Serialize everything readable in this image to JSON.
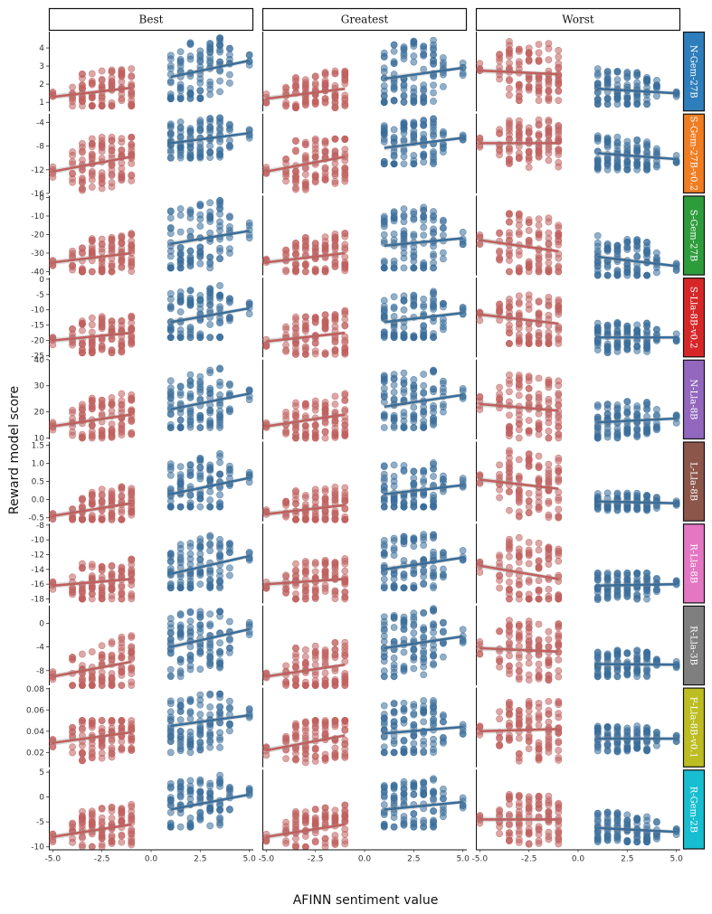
{
  "chart_data": {
    "type": "scatter",
    "xlabel": "AFINN sentiment value",
    "ylabel": "Reward model score",
    "x_ticks": [
      -5.0,
      -2.5,
      0.0,
      2.5,
      5.0
    ],
    "x_tick_labels": [
      "-5.0",
      "-2.5",
      "0.0",
      "2.5",
      "5.0"
    ],
    "xlim": [
      -5.2,
      5.2
    ],
    "columns": [
      "Best",
      "Greatest",
      "Worst"
    ],
    "colors": {
      "negative": "#c0605e",
      "positive": "#3a6e9a"
    },
    "neg_x": [
      -5,
      -4,
      -3.5,
      -3,
      -2.5,
      -2,
      -1.5,
      -1
    ],
    "pos_x": [
      1,
      1.5,
      2,
      2.5,
      3,
      3.5,
      4,
      5
    ],
    "rows": [
      {
        "name": "N-Gem-27B",
        "color": "#2f7ebc",
        "ylim": [
          0.5,
          4.9
        ],
        "ticks": [
          1,
          2,
          3,
          4
        ],
        "tick_labels": [
          "1",
          "2",
          "3",
          "4"
        ],
        "panels": [
          {
            "neg_fit": [
              1.3,
              1.8
            ],
            "pos_fit": [
              2.4,
              3.3
            ],
            "neg_range": [
              0.8,
              3.1
            ],
            "pos_range": [
              1.2,
              4.7
            ]
          },
          {
            "neg_fit": [
              1.2,
              1.75
            ],
            "pos_fit": [
              2.3,
              2.9
            ],
            "neg_range": [
              0.7,
              2.9
            ],
            "pos_range": [
              1.0,
              4.7
            ]
          },
          {
            "neg_fit": [
              2.75,
              2.55
            ],
            "pos_fit": [
              1.75,
              1.5
            ],
            "neg_range": [
              1.1,
              4.5
            ],
            "pos_range": [
              0.9,
              3.1
            ]
          }
        ]
      },
      {
        "name": "S-Gem-27B-v0.2",
        "color": "#f07d22",
        "ylim": [
          -16,
          -2.5
        ],
        "ticks": [
          -4,
          -8,
          -12,
          -16
        ],
        "tick_labels": [
          "-4",
          "-8",
          "-12",
          "-16"
        ],
        "panels": [
          {
            "neg_fit": [
              -12.3,
              -9.8
            ],
            "pos_fit": [
              -7.5,
              -5.8
            ],
            "neg_range": [
              -15.5,
              -6.5
            ],
            "pos_range": [
              -10,
              -3
            ]
          },
          {
            "neg_fit": [
              -12.3,
              -9.8
            ],
            "pos_fit": [
              -8.3,
              -6.6
            ],
            "neg_range": [
              -15.5,
              -6.8
            ],
            "pos_range": [
              -11,
              -3
            ]
          },
          {
            "neg_fit": [
              -7.5,
              -7.5
            ],
            "pos_fit": [
              -9.2,
              -10.2
            ],
            "neg_range": [
              -12,
              -3.5
            ],
            "pos_range": [
              -12,
              -6
            ]
          }
        ]
      },
      {
        "name": "S-Gem-27B",
        "color": "#2e9c3b",
        "ylim": [
          -42,
          1
        ],
        "ticks": [
          0,
          -10,
          -20,
          -30,
          -40
        ],
        "tick_labels": [
          "0",
          "-10",
          "-20",
          "-30",
          "-40"
        ],
        "panels": [
          {
            "neg_fit": [
              -35,
              -30
            ],
            "pos_fit": [
              -25,
              -18
            ],
            "neg_range": [
              -40,
              -18
            ],
            "pos_range": [
              -38,
              0
            ]
          },
          {
            "neg_fit": [
              -35,
              -30
            ],
            "pos_fit": [
              -26,
              -22
            ],
            "neg_range": [
              -40,
              -18
            ],
            "pos_range": [
              -38,
              0
            ]
          },
          {
            "neg_fit": [
              -23,
              -29
            ],
            "pos_fit": [
              -32,
              -37
            ],
            "neg_range": [
              -40,
              -5
            ],
            "pos_range": [
              -42,
              -18
            ]
          }
        ]
      },
      {
        "name": "S-Lla-8B-v0.2",
        "color": "#d62728",
        "ylim": [
          -25.5,
          0.5
        ],
        "ticks": [
          0,
          -5,
          -10,
          -15,
          -20,
          -25
        ],
        "tick_labels": [
          "0",
          "-5",
          "-10",
          "-15",
          "-20",
          "-25"
        ],
        "panels": [
          {
            "neg_fit": [
              -20,
              -17.5
            ],
            "pos_fit": [
              -14,
              -9.5
            ],
            "neg_range": [
              -24,
              -11
            ],
            "pos_range": [
              -19,
              0
            ]
          },
          {
            "neg_fit": [
              -20.3,
              -17.5
            ],
            "pos_fit": [
              -14,
              -11
            ],
            "neg_range": [
              -24.5,
              -10
            ],
            "pos_range": [
              -19,
              -2
            ]
          },
          {
            "neg_fit": [
              -11.5,
              -14.5
            ],
            "pos_fit": [
              -19,
              -19
            ],
            "neg_range": [
              -21,
              -3
            ],
            "pos_range": [
              -24,
              -14
            ]
          }
        ]
      },
      {
        "name": "N-Lla-8B",
        "color": "#9267bd",
        "ylim": [
          9.5,
          40
        ],
        "ticks": [
          10,
          20,
          30,
          40
        ],
        "tick_labels": [
          "10",
          "20",
          "30",
          "40"
        ],
        "panels": [
          {
            "neg_fit": [
              14.5,
              19
            ],
            "pos_fit": [
              21,
              27
            ],
            "neg_range": [
              10,
              27
            ],
            "pos_range": [
              14,
              38
            ]
          },
          {
            "neg_fit": [
              14.5,
              19
            ],
            "pos_fit": [
              22,
              26.5
            ],
            "neg_range": [
              10,
              27
            ],
            "pos_range": [
              14,
              38
            ]
          },
          {
            "neg_fit": [
              23,
              20.5
            ],
            "pos_fit": [
              16,
              17.5
            ],
            "neg_range": [
              10,
              35
            ],
            "pos_range": [
              10,
              25
            ]
          }
        ]
      },
      {
        "name": "L-Lla-8B",
        "color": "#8c564a",
        "ylim": [
          -0.6,
          1.6
        ],
        "ticks": [
          -0.5,
          0.0,
          0.5,
          1.0,
          1.5
        ],
        "tick_labels": [
          "-0.5",
          "0.0",
          "0.5",
          "1.0",
          "1.5"
        ],
        "panels": [
          {
            "neg_fit": [
              -0.45,
              -0.1
            ],
            "pos_fit": [
              0.15,
              0.6
            ],
            "neg_range": [
              -0.55,
              0.5
            ],
            "pos_range": [
              -0.2,
              1.5
            ]
          },
          {
            "neg_fit": [
              -0.4,
              -0.15
            ],
            "pos_fit": [
              0.15,
              0.4
            ],
            "neg_range": [
              -0.55,
              0.55
            ],
            "pos_range": [
              -0.2,
              1.4
            ]
          },
          {
            "neg_fit": [
              0.55,
              0.3
            ],
            "pos_fit": [
              -0.05,
              -0.1
            ],
            "neg_range": [
              -0.5,
              1.35
            ],
            "pos_range": [
              -0.3,
              0.2
            ]
          }
        ]
      },
      {
        "name": "R-Lla-8B",
        "color": "#e377c2",
        "ylim": [
          -18.6,
          -7.8
        ],
        "ticks": [
          -8,
          -10,
          -12,
          -14,
          -16,
          -18
        ],
        "tick_labels": [
          "-8",
          "-10",
          "-12",
          "-14",
          "-16",
          "-18"
        ],
        "panels": [
          {
            "neg_fit": [
              -16.2,
              -15.3
            ],
            "pos_fit": [
              -14.6,
              -12.2
            ],
            "neg_range": [
              -18,
              -12.5
            ],
            "pos_range": [
              -16.5,
              -8.5
            ]
          },
          {
            "neg_fit": [
              -16,
              -15.3
            ],
            "pos_fit": [
              -14,
              -12.4
            ],
            "neg_range": [
              -18,
              -12.5
            ],
            "pos_range": [
              -16.5,
              -8.3
            ]
          },
          {
            "neg_fit": [
              -13.5,
              -15.3
            ],
            "pos_fit": [
              -16.2,
              -16
            ],
            "neg_range": [
              -18,
              -8.5
            ],
            "pos_range": [
              -18.5,
              -14.5
            ]
          }
        ]
      },
      {
        "name": "R-Lla-3B",
        "color": "#7f7f7f",
        "ylim": [
          -10.5,
          3
        ],
        "ticks": [
          0,
          -4,
          -8
        ],
        "tick_labels": [
          "0",
          "-4",
          "-8"
        ],
        "panels": [
          {
            "neg_fit": [
              -9,
              -6.5
            ],
            "pos_fit": [
              -4,
              -1
            ],
            "neg_range": [
              -10.5,
              -1.5
            ],
            "pos_range": [
              -9,
              2
            ]
          },
          {
            "neg_fit": [
              -9,
              -7
            ],
            "pos_fit": [
              -4.2,
              -2.2
            ],
            "neg_range": [
              -10.5,
              -2
            ],
            "pos_range": [
              -9,
              2.5
            ]
          },
          {
            "neg_fit": [
              -4.2,
              -4.8
            ],
            "pos_fit": [
              -6.9,
              -7
            ],
            "neg_range": [
              -10,
              0.5
            ],
            "pos_range": [
              -9,
              -4
            ]
          }
        ]
      },
      {
        "name": "F-Lla-8B-v0.1",
        "color": "#bcbd22",
        "ylim": [
          0.006,
          0.081
        ],
        "ticks": [
          0.08,
          0.06,
          0.04,
          0.02
        ],
        "tick_labels": [
          "0.08",
          "0.06",
          "0.04",
          "0.02"
        ],
        "panels": [
          {
            "neg_fit": [
              0.029,
              0.039
            ],
            "pos_fit": [
              0.045,
              0.055
            ],
            "neg_range": [
              0.008,
              0.05
            ],
            "pos_range": [
              0.02,
              0.075
            ]
          },
          {
            "neg_fit": [
              0.022,
              0.036
            ],
            "pos_fit": [
              0.038,
              0.044
            ],
            "neg_range": [
              0.008,
              0.05
            ],
            "pos_range": [
              0.02,
              0.078
            ]
          },
          {
            "neg_fit": [
              0.04,
              0.042
            ],
            "pos_fit": [
              0.033,
              0.033
            ],
            "neg_range": [
              0.008,
              0.068
            ],
            "pos_range": [
              0.02,
              0.045
            ]
          }
        ]
      },
      {
        "name": "R-Gem-2B",
        "color": "#17becf",
        "ylim": [
          -10.5,
          5.5
        ],
        "ticks": [
          5,
          0,
          -5,
          -10
        ],
        "tick_labels": [
          "5",
          "0",
          "-5",
          "-10"
        ],
        "panels": [
          {
            "neg_fit": [
              -8,
              -5.5
            ],
            "pos_fit": [
              -2.5,
              0.5
            ],
            "neg_range": [
              -10,
              -1.5
            ],
            "pos_range": [
              -6,
              4.5
            ]
          },
          {
            "neg_fit": [
              -8,
              -5.5
            ],
            "pos_fit": [
              -2.5,
              -1
            ],
            "neg_range": [
              -10,
              -1.5
            ],
            "pos_range": [
              -6,
              4.5
            ]
          },
          {
            "neg_fit": [
              -4.5,
              -4.5
            ],
            "pos_fit": [
              -6.2,
              -7
            ],
            "neg_range": [
              -9.5,
              0.5
            ],
            "pos_range": [
              -9,
              -2.5
            ]
          }
        ]
      }
    ]
  }
}
